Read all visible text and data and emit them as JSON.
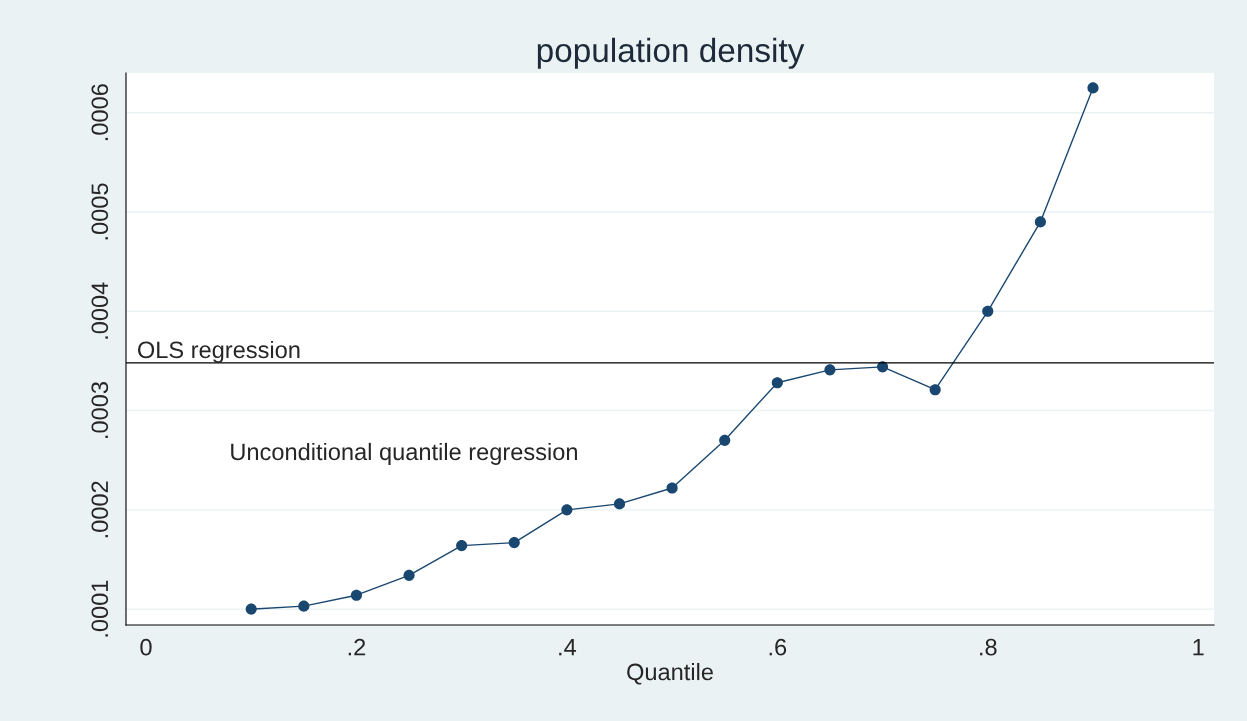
{
  "chart_data": {
    "type": "line",
    "title": "population density",
    "xlabel": "Quantile",
    "x": [
      0.1,
      0.15,
      0.2,
      0.25,
      0.3,
      0.35,
      0.4,
      0.45,
      0.5,
      0.55,
      0.6,
      0.65,
      0.7,
      0.75,
      0.8,
      0.85,
      0.9
    ],
    "series": [
      {
        "color": "#1a476f",
        "values": [
          0.0001,
          0.000103,
          0.000114,
          0.000134,
          0.000164,
          0.000167,
          0.0002,
          0.000206,
          0.000222,
          0.00027,
          0.000328,
          0.000341,
          0.000344,
          0.000321,
          0.0004,
          0.00049,
          0.000625
        ]
      }
    ],
    "marker": "circle",
    "line_style": "solid",
    "grid": "y",
    "legend": false,
    "xlim": [
      -0.019,
      1.015
    ],
    "xticks": [
      0,
      {
        "value": 0.2,
        "label": ".2"
      },
      {
        "value": 0.4,
        "label": ".4"
      },
      {
        "value": 0.6,
        "label": ".6"
      },
      {
        "value": 0.8,
        "label": ".8"
      },
      1
    ],
    "ylim": [
      8.4e-05,
      0.00064
    ],
    "yticks": [
      {
        "value": 0.0001,
        "label": ".0001"
      },
      {
        "value": 0.0002,
        "label": ".0002"
      },
      {
        "value": 0.0003,
        "label": ".0003"
      },
      {
        "value": 0.0004,
        "label": ".0004"
      },
      {
        "value": 0.0005,
        "label": ".0005"
      },
      {
        "value": 0.0006,
        "label": ".0006"
      }
    ],
    "ref_lines": [
      {
        "axis": "y",
        "value": 0.000348,
        "label": "OLS regression",
        "color": "#000000"
      }
    ],
    "annotations": [
      "Unconditional quantile regression"
    ]
  }
}
